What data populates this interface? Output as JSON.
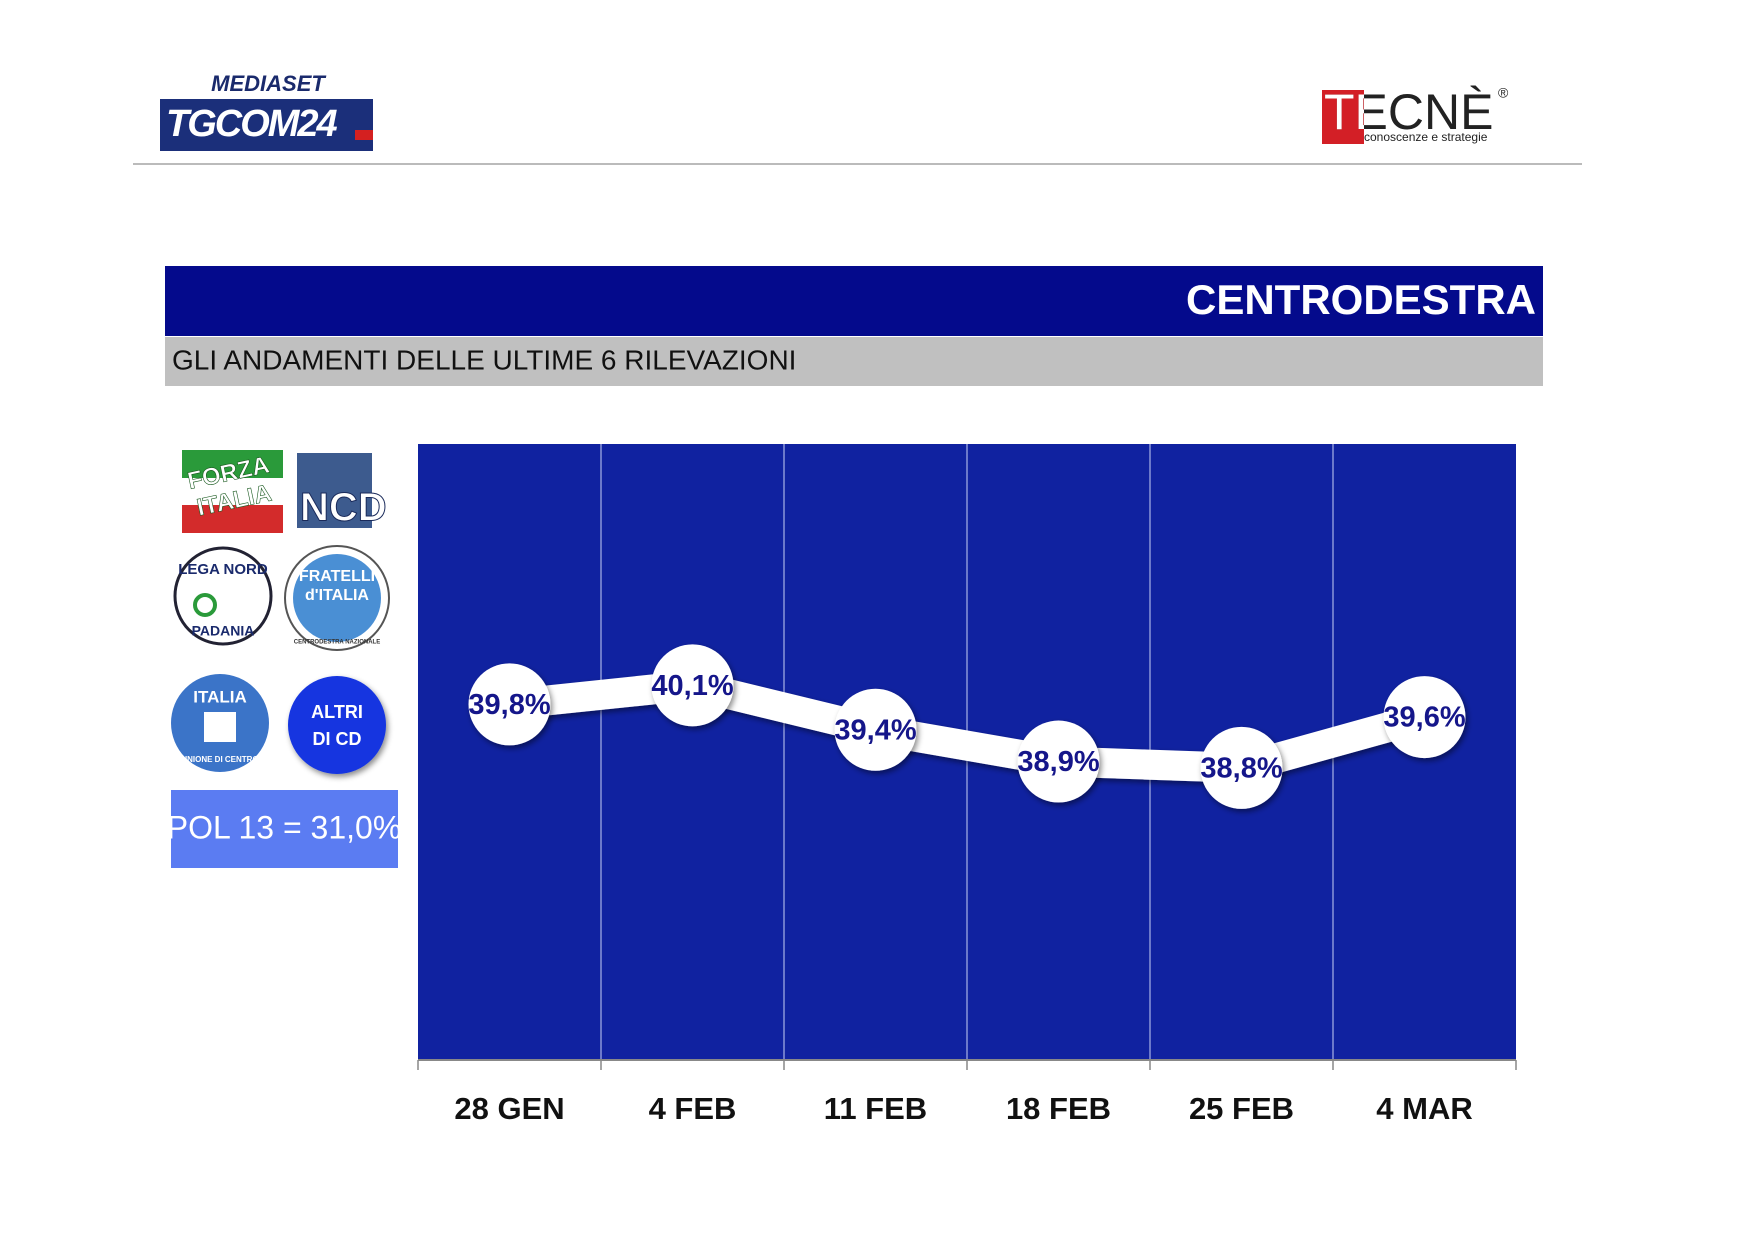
{
  "header": {
    "mediaset": "MEDIASET",
    "tgcom": "TGCOM24",
    "tecne": "TECNÈ",
    "registered": "®",
    "tecne_tagline": "conoscenze e strategie"
  },
  "parties": {
    "forza_italia": [
      "FORZA",
      "ITALIA"
    ],
    "ncd": "NCD",
    "lega_nord": [
      "LEGA NORD",
      "PADANIA"
    ],
    "fdi": [
      "FRATELLI",
      "d'ITALIA",
      "CENTRODESTRA NAZIONALE"
    ],
    "udc": [
      "ITALIA",
      "UNIONE DI CENTRO"
    ],
    "altri": [
      "ALTRI",
      "DI CD"
    ]
  },
  "pol": "POL 13 = 31,0%",
  "chart_data": {
    "type": "line",
    "title": "CENTRODESTRA",
    "subtitle": "GLI ANDAMENTI DELLE ULTIME 6 RILEVAZIONI",
    "categories": [
      "28 GEN",
      "4 FEB",
      "11 FEB",
      "18 FEB",
      "25 FEB",
      "4 MAR"
    ],
    "values": [
      39.8,
      40.1,
      39.4,
      38.9,
      38.8,
      39.6
    ],
    "value_labels": [
      "39,8%",
      "40,1%",
      "39,4%",
      "38,9%",
      "38,8%",
      "39,6%"
    ],
    "color": "#ffffff",
    "background": "#1022a0",
    "label_color": "#15168a",
    "ylim": [
      34.2,
      43.9
    ]
  }
}
